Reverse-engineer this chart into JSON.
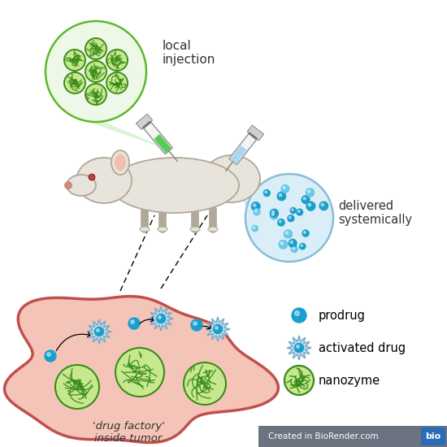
{
  "bg_color": "#ffffff",
  "nanozyme_color": "#3a8c1a",
  "nanozyme_fill": "#c8e890",
  "prodrug_color": "#1a9fcc",
  "activated_face": "#c8dcf0",
  "activated_edge": "#7aaec8",
  "tumor_face": "#f5c4b8",
  "tumor_edge": "#c0504d",
  "local_inj_text": "local\ninjection",
  "delivered_text": "delivered\nsystemically",
  "drug_factory_text": "'drug factory'\ninside tumor",
  "circle_local_color": "#eef8e8",
  "circle_local_edge": "#5aba2a",
  "circle_sys_color": "#daeef8",
  "circle_sys_edge": "#8abcd8",
  "legend_items": [
    {
      "label": "prodrug"
    },
    {
      "label": "activated drug"
    },
    {
      "label": "nanozyme"
    }
  ],
  "biorender_text": "Created in BioRender.com",
  "biorender_bg": "#6b7280",
  "biorender_blue": "#2a6cb5",
  "rat_body_color": "#e8e4dc",
  "rat_body_edge": "#b0a898",
  "rat_tail_color": "#d0a090",
  "rat_ear_inner": "#f0c0b0",
  "rat_eye_color": "#c04040"
}
